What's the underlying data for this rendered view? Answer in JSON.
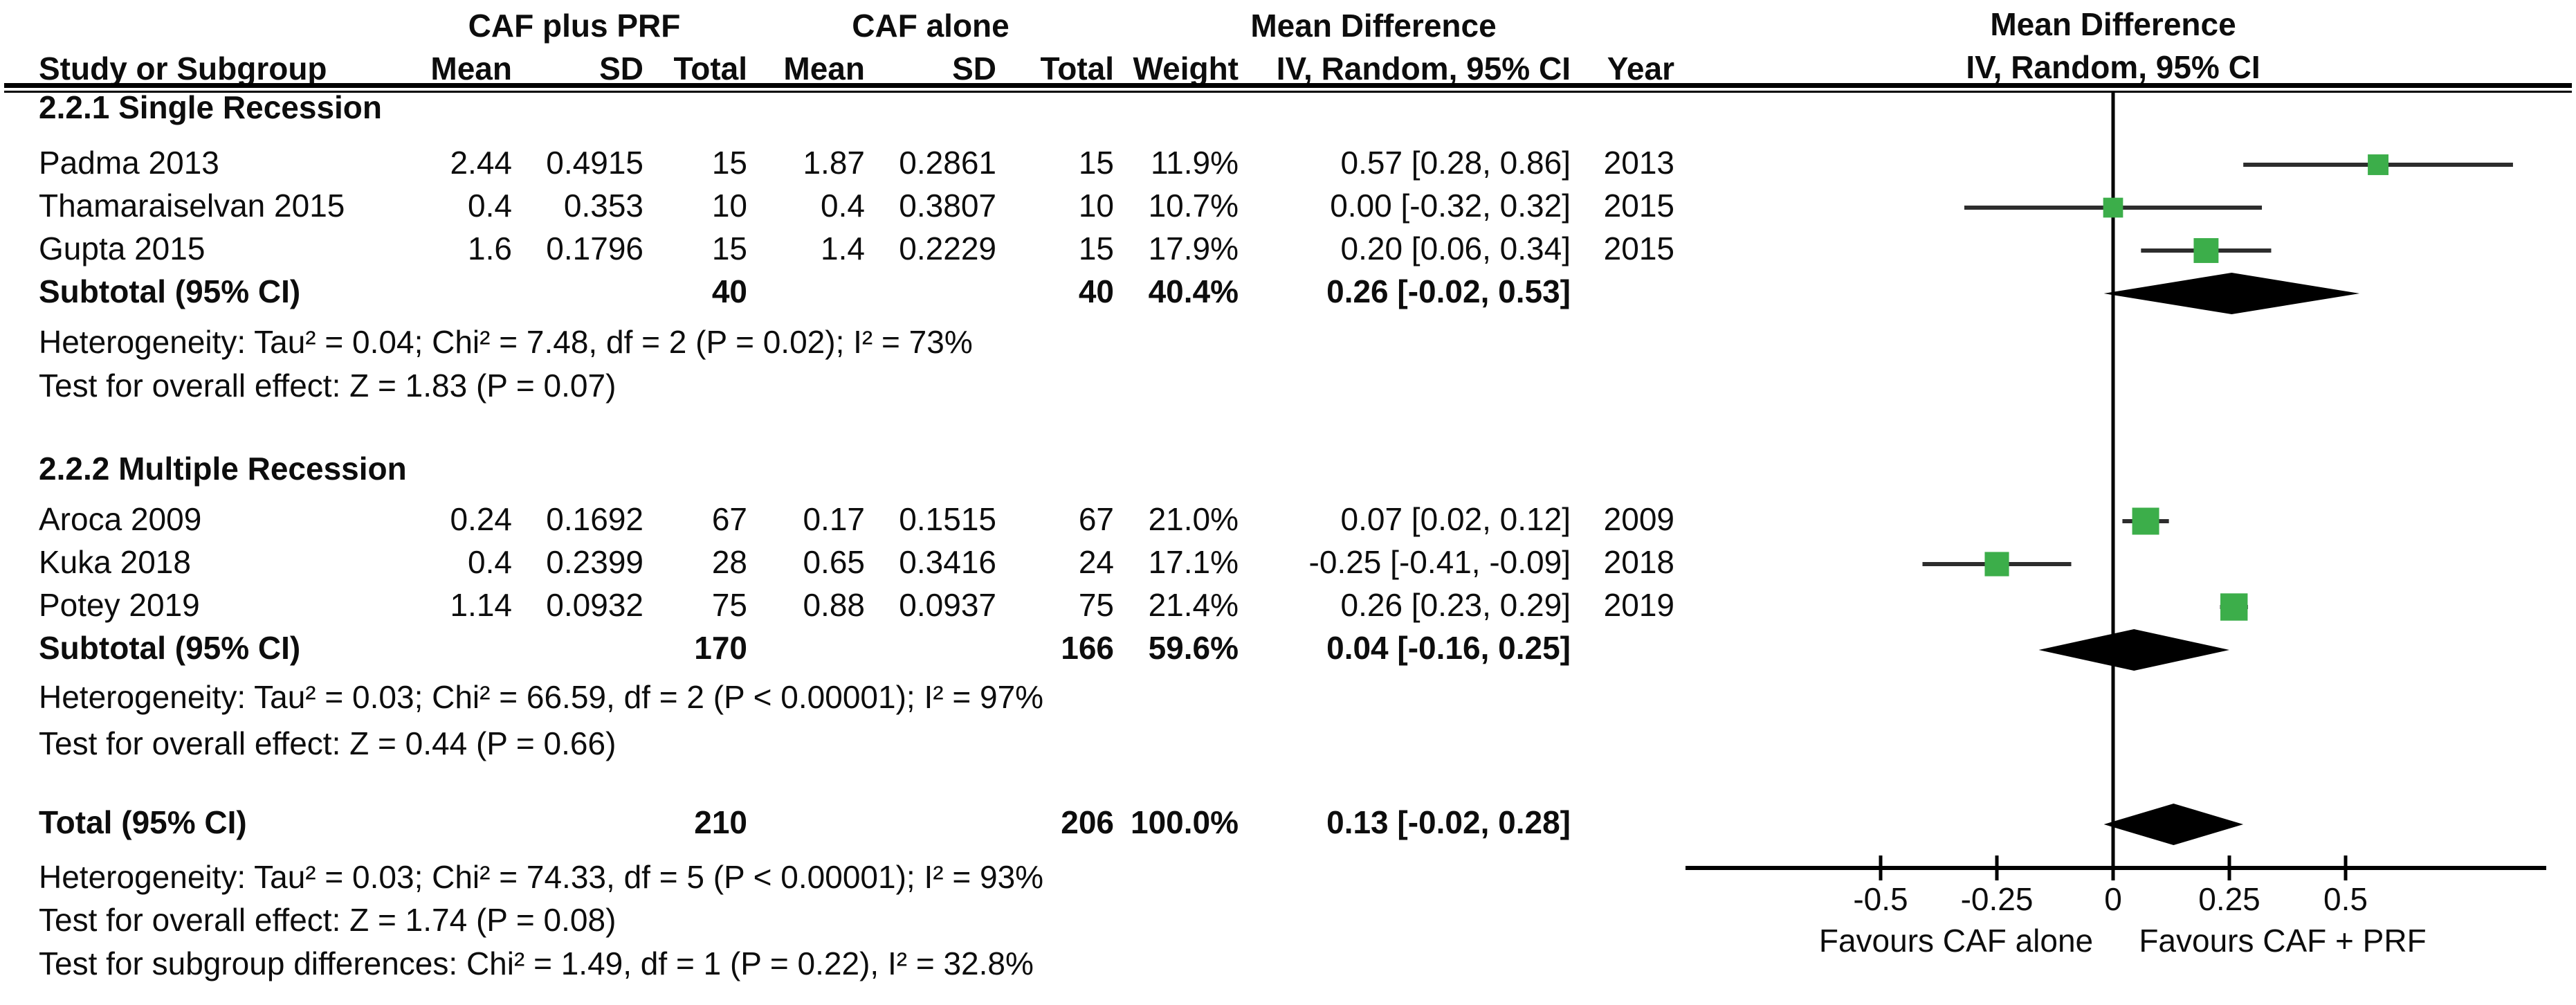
{
  "header": {
    "group1": "CAF plus PRF",
    "group2": "CAF alone",
    "md_title_line1": "Mean Difference",
    "plot_title_line1": "Mean Difference",
    "plot_title_line2": "IV, Random, 95% CI",
    "columns": [
      "Study or Subgroup",
      "Mean",
      "SD",
      "Total",
      "Mean",
      "SD",
      "Total",
      "Weight",
      "IV, Random, 95% CI",
      "Year"
    ]
  },
  "rows": [
    {
      "type": "section",
      "label": "2.2.1 Single Recession"
    },
    {
      "type": "study",
      "study": "Padma 2013",
      "mean1": "2.44",
      "sd1": "0.4915",
      "total1": "15",
      "mean2": "1.87",
      "sd2": "0.2861",
      "total2": "15",
      "weight": "11.9%",
      "ci": "0.57 [0.28, 0.86]",
      "year": "2013",
      "est": 0.57,
      "lo": 0.28,
      "hi": 0.86,
      "w": 11.9
    },
    {
      "type": "study",
      "study": "Thamaraiselvan 2015",
      "mean1": "0.4",
      "sd1": "0.353",
      "total1": "10",
      "mean2": "0.4",
      "sd2": "0.3807",
      "total2": "10",
      "weight": "10.7%",
      "ci": "0.00 [-0.32, 0.32]",
      "year": "2015",
      "est": 0.0,
      "lo": -0.32,
      "hi": 0.32,
      "w": 10.7
    },
    {
      "type": "study",
      "study": "Gupta 2015",
      "mean1": "1.6",
      "sd1": "0.1796",
      "total1": "15",
      "mean2": "1.4",
      "sd2": "0.2229",
      "total2": "15",
      "weight": "17.9%",
      "ci": "0.20 [0.06, 0.34]",
      "year": "2015",
      "est": 0.2,
      "lo": 0.06,
      "hi": 0.34,
      "w": 17.9
    },
    {
      "type": "subtotal",
      "label": "Subtotal (95% CI)",
      "total1": "40",
      "total2": "40",
      "weight": "40.4%",
      "ci": "0.26 [-0.02, 0.53]",
      "est": 0.255,
      "lo": -0.02,
      "hi": 0.53
    },
    {
      "type": "note",
      "text": "Heterogeneity: Tau² = 0.04; Chi² = 7.48, df = 2 (P = 0.02); I² = 73%"
    },
    {
      "type": "note",
      "text": "Test for overall effect: Z = 1.83 (P = 0.07)"
    },
    {
      "type": "section",
      "label": "2.2.2 Multiple Recession"
    },
    {
      "type": "study",
      "study": "Aroca 2009",
      "mean1": "0.24",
      "sd1": "0.1692",
      "total1": "67",
      "mean2": "0.17",
      "sd2": "0.1515",
      "total2": "67",
      "weight": "21.0%",
      "ci": "0.07 [0.02, 0.12]",
      "year": "2009",
      "est": 0.07,
      "lo": 0.02,
      "hi": 0.12,
      "w": 21.0
    },
    {
      "type": "study",
      "study": "Kuka 2018",
      "mean1": "0.4",
      "sd1": "0.2399",
      "total1": "28",
      "mean2": "0.65",
      "sd2": "0.3416",
      "total2": "24",
      "weight": "17.1%",
      "ci": "-0.25 [-0.41, -0.09]",
      "year": "2018",
      "est": -0.25,
      "lo": -0.41,
      "hi": -0.09,
      "w": 17.1
    },
    {
      "type": "study",
      "study": "Potey 2019",
      "mean1": "1.14",
      "sd1": "0.0932",
      "total1": "75",
      "mean2": "0.88",
      "sd2": "0.0937",
      "total2": "75",
      "weight": "21.4%",
      "ci": "0.26 [0.23, 0.29]",
      "year": "2019",
      "est": 0.26,
      "lo": 0.23,
      "hi": 0.29,
      "w": 21.4
    },
    {
      "type": "subtotal",
      "label": "Subtotal (95% CI)",
      "total1": "170",
      "total2": "166",
      "weight": "59.6%",
      "ci": "0.04 [-0.16, 0.25]",
      "est": 0.045,
      "lo": -0.16,
      "hi": 0.25
    },
    {
      "type": "note",
      "text": "Heterogeneity: Tau² = 0.03; Chi² = 66.59, df = 2 (P < 0.00001); I² = 97%"
    },
    {
      "type": "note",
      "text": "Test for overall effect: Z = 0.44 (P = 0.66)"
    },
    {
      "type": "total",
      "label": "Total (95% CI)",
      "total1": "210",
      "total2": "206",
      "weight": "100.0%",
      "ci": "0.13 [-0.02, 0.28]",
      "est": 0.13,
      "lo": -0.02,
      "hi": 0.28
    },
    {
      "type": "note",
      "text": "Heterogeneity: Tau² = 0.03; Chi² = 74.33, df = 5 (P < 0.00001); I² = 93%"
    },
    {
      "type": "note",
      "text": "Test for overall effect: Z = 1.74 (P = 0.08)"
    },
    {
      "type": "note",
      "text": "Test for subgroup differences: Chi² = 1.49, df = 1 (P = 0.22), I² = 32.8%"
    }
  ],
  "axis": {
    "tick_labels": [
      "-0.5",
      "-0.25",
      "0",
      "0.25",
      "0.5"
    ],
    "tick_values": [
      -0.5,
      -0.25,
      0,
      0.25,
      0.5
    ],
    "favours_left": "Favours CAF alone",
    "favours_right": "Favours CAF + PRF"
  },
  "colors": {
    "marker_green": "#3CAE4A",
    "ci_line": "#2d2d2d",
    "diamond": "#000000",
    "axis": "#000000"
  },
  "chart_data": {
    "type": "forest",
    "title": "Mean Difference",
    "effect_measure": "IV, Random, 95% CI",
    "xlim": [
      -0.92,
      0.93
    ],
    "x_ticks": [
      -0.5,
      -0.25,
      0,
      0.25,
      0.5
    ],
    "favours_left": "Favours CAF alone",
    "favours_right": "Favours CAF + PRF",
    "subgroups": [
      {
        "name": "2.2.1 Single Recession",
        "studies": [
          {
            "study": "Padma 2013",
            "mean_exp": 2.44,
            "sd_exp": 0.4915,
            "n_exp": 15,
            "mean_ctl": 1.87,
            "sd_ctl": 0.2861,
            "n_ctl": 15,
            "weight_pct": 11.9,
            "est": 0.57,
            "ci": [
              0.28,
              0.86
            ],
            "year": 2013
          },
          {
            "study": "Thamaraiselvan 2015",
            "mean_exp": 0.4,
            "sd_exp": 0.353,
            "n_exp": 10,
            "mean_ctl": 0.4,
            "sd_ctl": 0.3807,
            "n_ctl": 10,
            "weight_pct": 10.7,
            "est": 0.0,
            "ci": [
              -0.32,
              0.32
            ],
            "year": 2015
          },
          {
            "study": "Gupta 2015",
            "mean_exp": 1.6,
            "sd_exp": 0.1796,
            "n_exp": 15,
            "mean_ctl": 1.4,
            "sd_ctl": 0.2229,
            "n_ctl": 15,
            "weight_pct": 17.9,
            "est": 0.2,
            "ci": [
              0.06,
              0.34
            ],
            "year": 2015
          }
        ],
        "subtotal": {
          "n_exp": 40,
          "n_ctl": 40,
          "weight_pct": 40.4,
          "est": 0.26,
          "ci": [
            -0.02,
            0.53
          ]
        },
        "heterogeneity": "Tau² = 0.04; Chi² = 7.48, df = 2 (P = 0.02); I² = 73%",
        "overall_effect": "Z = 1.83 (P = 0.07)"
      },
      {
        "name": "2.2.2 Multiple Recession",
        "studies": [
          {
            "study": "Aroca 2009",
            "mean_exp": 0.24,
            "sd_exp": 0.1692,
            "n_exp": 67,
            "mean_ctl": 0.17,
            "sd_ctl": 0.1515,
            "n_ctl": 67,
            "weight_pct": 21.0,
            "est": 0.07,
            "ci": [
              0.02,
              0.12
            ],
            "year": 2009
          },
          {
            "study": "Kuka 2018",
            "mean_exp": 0.4,
            "sd_exp": 0.2399,
            "n_exp": 28,
            "mean_ctl": 0.65,
            "sd_ctl": 0.3416,
            "n_ctl": 24,
            "weight_pct": 17.1,
            "est": -0.25,
            "ci": [
              -0.41,
              -0.09
            ],
            "year": 2018
          },
          {
            "study": "Potey 2019",
            "mean_exp": 1.14,
            "sd_exp": 0.0932,
            "n_exp": 75,
            "mean_ctl": 0.88,
            "sd_ctl": 0.0937,
            "n_ctl": 75,
            "weight_pct": 21.4,
            "est": 0.26,
            "ci": [
              0.23,
              0.29
            ],
            "year": 2019
          }
        ],
        "subtotal": {
          "n_exp": 170,
          "n_ctl": 166,
          "weight_pct": 59.6,
          "est": 0.04,
          "ci": [
            -0.16,
            0.25
          ]
        },
        "heterogeneity": "Tau² = 0.03; Chi² = 66.59, df = 2 (P < 0.00001); I² = 97%",
        "overall_effect": "Z = 0.44 (P = 0.66)"
      }
    ],
    "total": {
      "n_exp": 210,
      "n_ctl": 206,
      "weight_pct": 100.0,
      "est": 0.13,
      "ci": [
        -0.02,
        0.28
      ],
      "heterogeneity": "Tau² = 0.03; Chi² = 74.33, df = 5 (P < 0.00001); I² = 93%",
      "overall_effect": "Z = 1.74 (P = 0.08)",
      "subgroup_differences": "Chi² = 1.49, df = 1 (P = 0.22), I² = 32.8%"
    }
  }
}
